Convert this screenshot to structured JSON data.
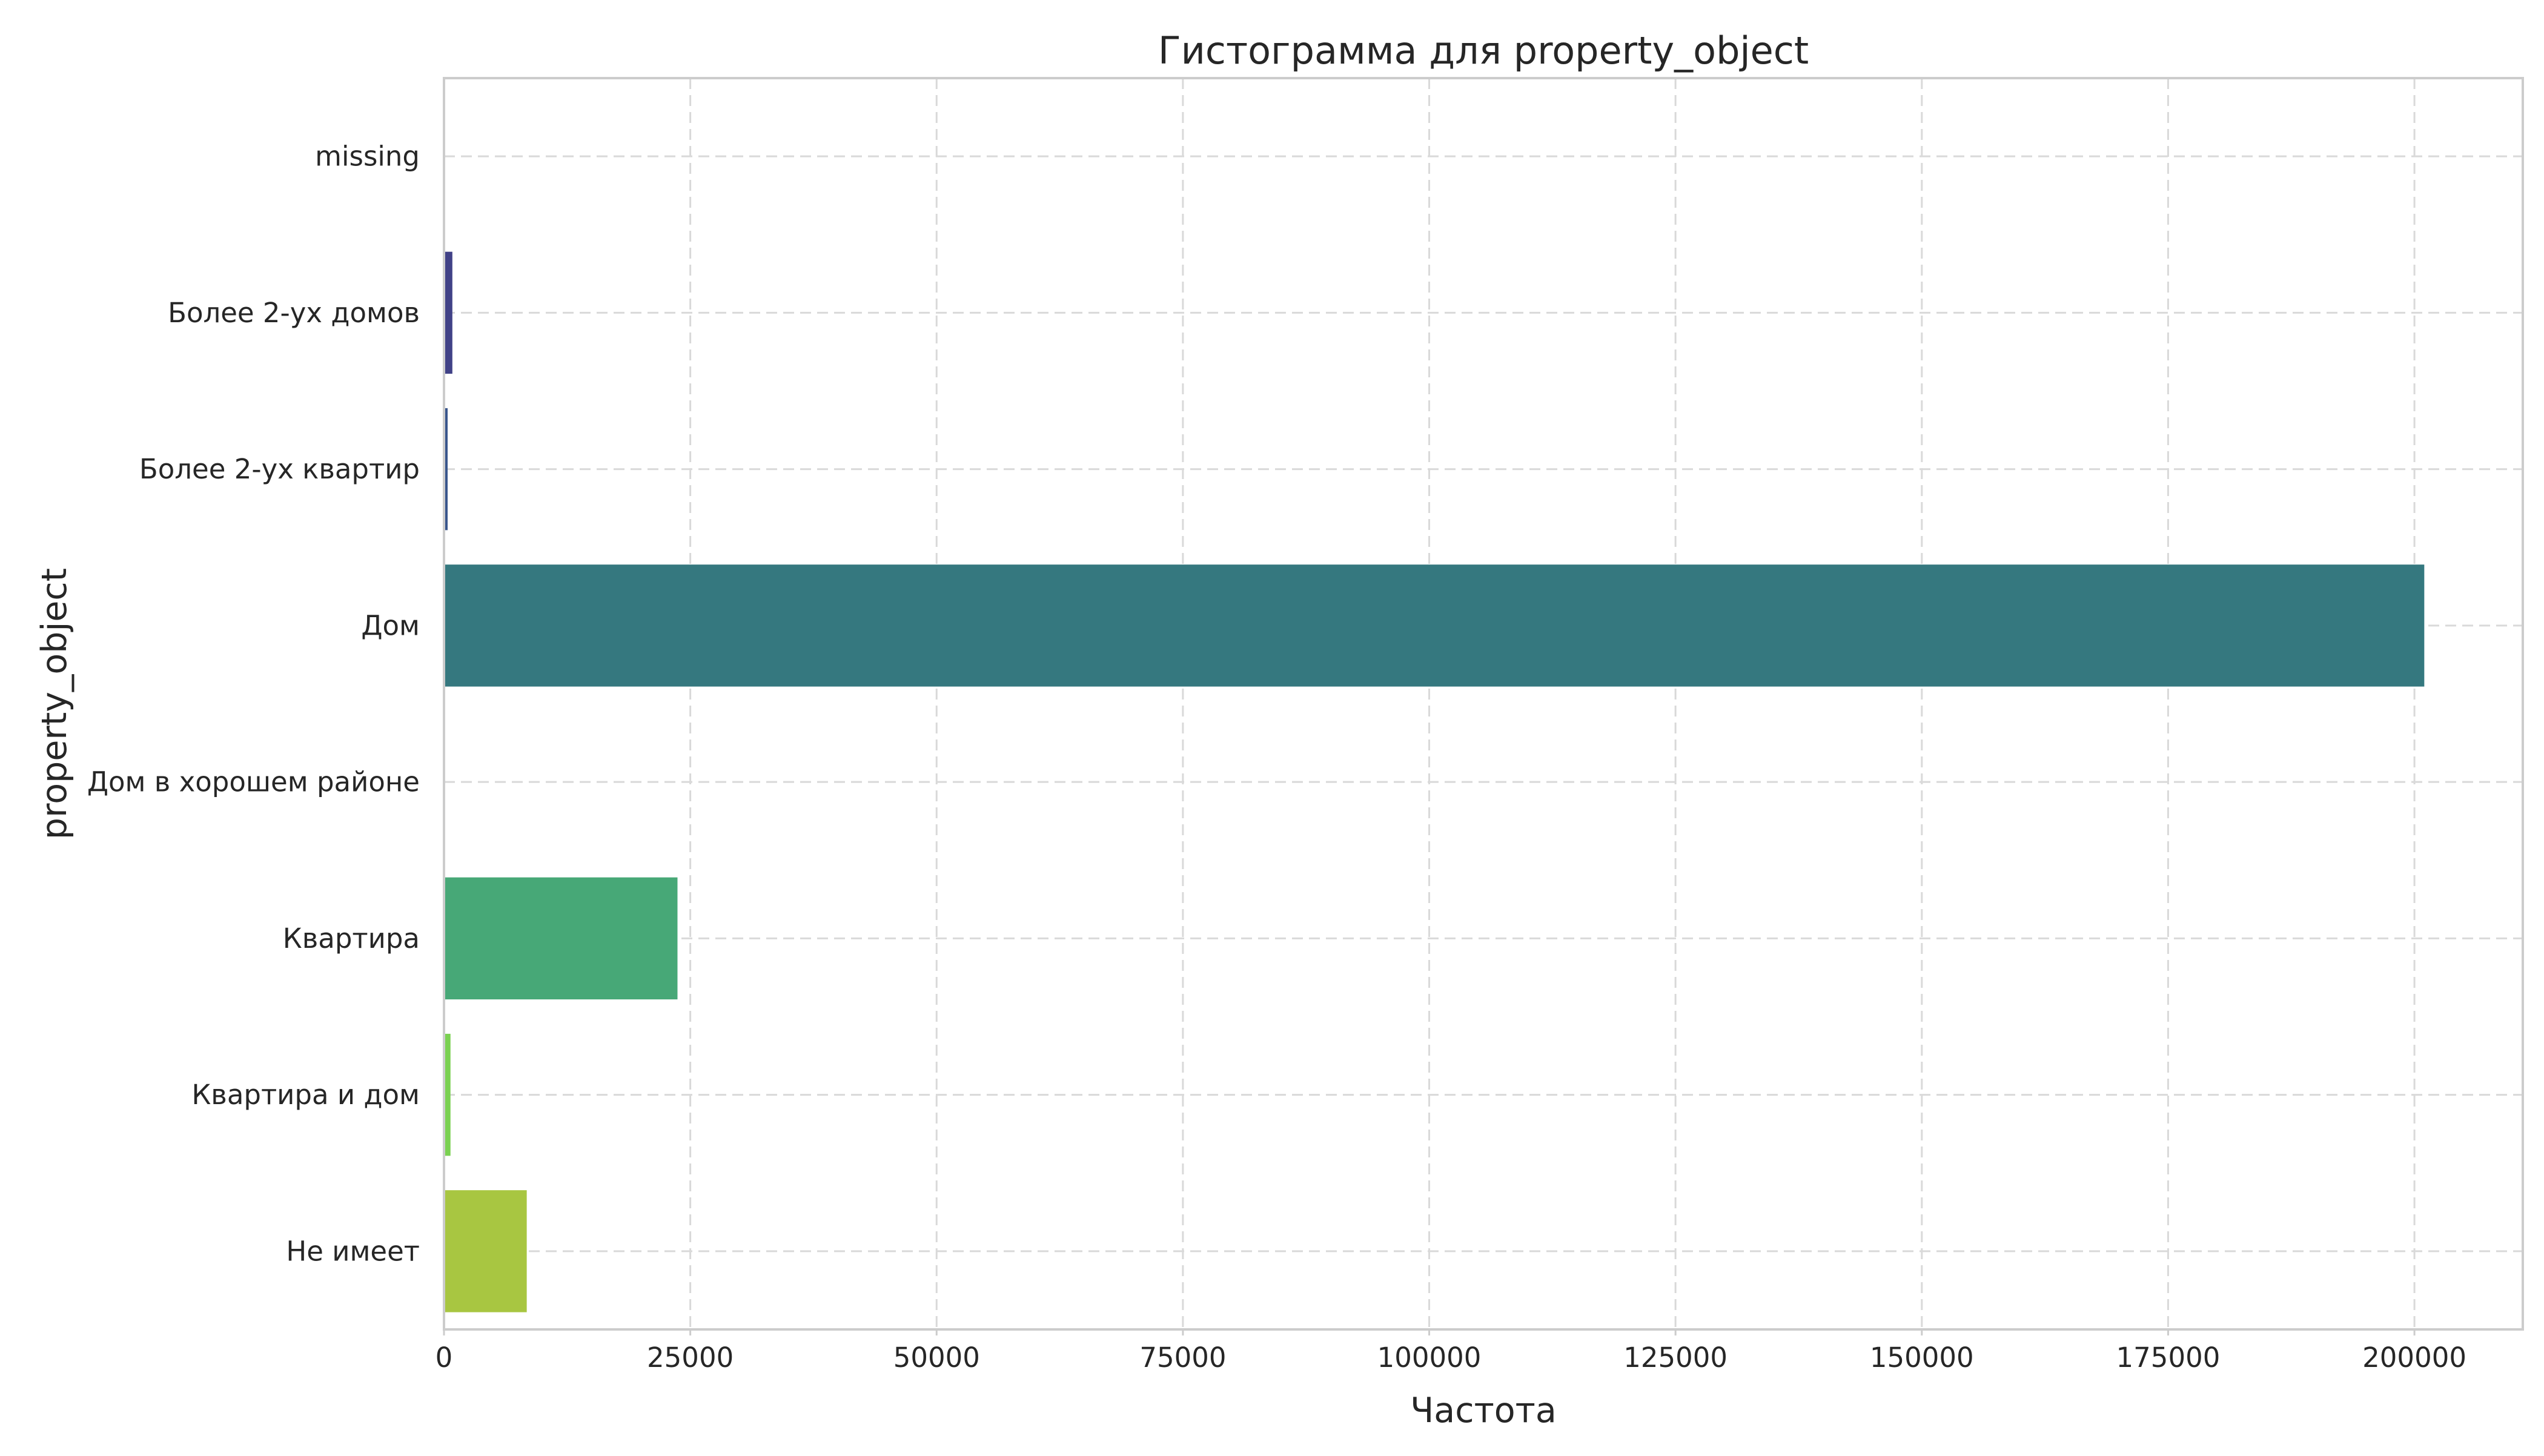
{
  "chart_data": {
    "type": "bar",
    "orientation": "horizontal",
    "title": "Гистограмма для property_object",
    "xlabel": "Частота",
    "ylabel": "property_object",
    "categories": [
      "missing",
      "Более 2-ух домов",
      "Более 2-ух квартир",
      "Дом",
      "Дом в хорошем районе",
      "Квартира",
      "Квартира и дом",
      "Не имеет"
    ],
    "values": [
      3,
      850,
      370,
      201000,
      5,
      23700,
      660,
      8400
    ],
    "colors": [
      "#471063",
      "#414287",
      "#39568c",
      "#35787f",
      "#23898e",
      "#47a877",
      "#7ad151",
      "#a8c641"
    ],
    "xlim": [
      0,
      211000
    ],
    "xticks": [
      0,
      25000,
      50000,
      75000,
      100000,
      125000,
      150000,
      175000,
      200000
    ],
    "xtick_labels": [
      "0",
      "25000",
      "50000",
      "75000",
      "100000",
      "125000",
      "150000",
      "175000",
      "200000"
    ],
    "grid": true,
    "legend": "none"
  }
}
